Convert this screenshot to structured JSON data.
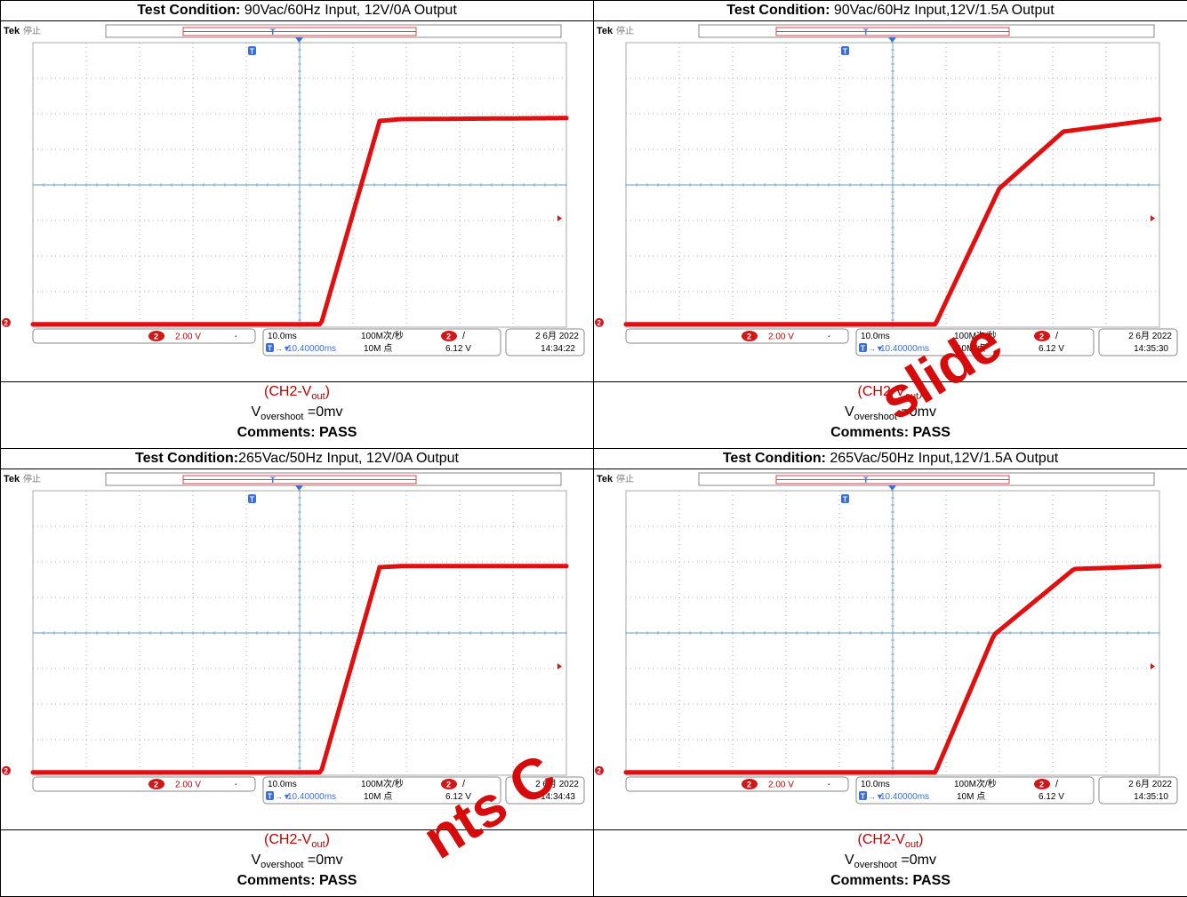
{
  "panels": [
    {
      "condition_label": "Test Condition:",
      "condition_text": " 90Vac/60Hz Input, 12V/0A Output",
      "scope": {
        "brand": "Tek",
        "state": "停止",
        "ch_badge": "2",
        "ch_scale": "2.00 V",
        "timebase": "10.0ms",
        "trigger_pos": "10.40000ms",
        "sample_rate": "100M次/秒",
        "record_length": "10M 点",
        "trigger_level": "6.12 V",
        "date": "2 6月 2022",
        "time": "14:34:22"
      },
      "result": {
        "channel_prefix": "(CH2-V",
        "channel_sub": "out",
        "channel_suffix": ")",
        "overshoot_prefix": "V",
        "overshoot_sub": "overshoot",
        "overshoot_value": " =0mv",
        "comments_label": "Comments: PASS"
      }
    },
    {
      "condition_label": "Test Condition:",
      "condition_text": " 90Vac/60Hz Input,12V/1.5A Output",
      "scope": {
        "brand": "Tek",
        "state": "停止",
        "ch_badge": "2",
        "ch_scale": "2.00 V",
        "timebase": "10.0ms",
        "trigger_pos": "10.40000ms",
        "sample_rate": "100M次/秒",
        "record_length": "10M 点",
        "trigger_level": "6.12 V",
        "date": "2 6月 2022",
        "time": "14:35:30"
      },
      "result": {
        "channel_prefix": "(CH2-V",
        "channel_sub": "out",
        "channel_suffix": ")",
        "overshoot_prefix": "V",
        "overshoot_sub": "overshoot",
        "overshoot_value": " =0mv",
        "comments_label": "Comments: PASS"
      }
    },
    {
      "condition_label": "Test Condition:",
      "condition_text": "265Vac/50Hz Input, 12V/0A Output",
      "scope": {
        "brand": "Tek",
        "state": "停止",
        "ch_badge": "2",
        "ch_scale": "2.00 V",
        "timebase": "10.0ms",
        "trigger_pos": "10.40000ms",
        "sample_rate": "100M次/秒",
        "record_length": "10M 点",
        "trigger_level": "6.12 V",
        "date": "2 6月 2022",
        "time": "14:34:43"
      },
      "result": {
        "channel_prefix": "(CH2-V",
        "channel_sub": "out",
        "channel_suffix": ")",
        "overshoot_prefix": "V",
        "overshoot_sub": "overshoot",
        "overshoot_value": " =0mv",
        "comments_label": "Comments: PASS"
      }
    },
    {
      "condition_label": "Test Condition:",
      "condition_text": " 265Vac/50Hz Input,12V/1.5A Output",
      "scope": {
        "brand": "Tek",
        "state": "停止",
        "ch_badge": "2",
        "ch_scale": "2.00 V",
        "timebase": "10.0ms",
        "trigger_pos": "10.40000ms",
        "sample_rate": "100M次/秒",
        "record_length": "10M 点",
        "trigger_level": "6.12 V",
        "date": "2 6月 2022",
        "time": "14:35:10"
      },
      "result": {
        "channel_prefix": "(CH2-V",
        "channel_sub": "out",
        "channel_suffix": ")",
        "overshoot_prefix": "V",
        "overshoot_sub": "overshoot",
        "overshoot_value": " =0mv",
        "comments_label": "Comments: PASS"
      }
    }
  ],
  "waveforms": [
    {
      "type": "line",
      "series": [
        {
          "x_div": [
            0,
            5.4,
            6.5,
            6.9,
            10
          ],
          "y_div": [
            0.08,
            0.08,
            5.8,
            5.85,
            5.88
          ]
        }
      ]
    },
    {
      "type": "line",
      "series": [
        {
          "x_div": [
            0,
            5.8,
            7.0,
            8.2,
            10
          ],
          "y_div": [
            0.08,
            0.08,
            3.9,
            5.5,
            5.85
          ]
        }
      ]
    },
    {
      "type": "line",
      "series": [
        {
          "x_div": [
            0,
            5.4,
            6.5,
            6.9,
            10
          ],
          "y_div": [
            0.08,
            0.08,
            5.85,
            5.88,
            5.88
          ]
        }
      ]
    },
    {
      "type": "line",
      "series": [
        {
          "x_div": [
            0,
            5.8,
            6.9,
            8.4,
            10
          ],
          "y_div": [
            0.08,
            0.08,
            3.95,
            5.8,
            5.88
          ]
        }
      ]
    }
  ],
  "colors": {
    "trace": "#e01010",
    "graticule": "#9a9a9a",
    "axis": "#6699cc",
    "badge": "#d01818",
    "text_red": "#c00000"
  },
  "watermark": {
    "text_1": "slide",
    "text_2": "nts C"
  }
}
